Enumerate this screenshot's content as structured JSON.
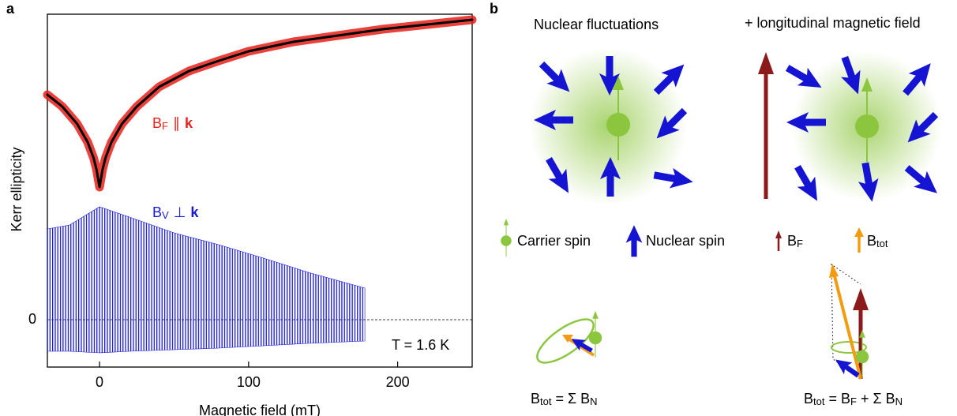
{
  "chart_data": {
    "type": "line",
    "panel_label": "a",
    "xlabel": "Magnetic field (mT)",
    "ylabel": "Kerr ellipticity",
    "xlim": [
      -35,
      250
    ],
    "ylim": [
      -0.6,
      3.87
    ],
    "xticks": [
      0,
      100,
      200
    ],
    "yticks": [
      0
    ],
    "zero_line": "dashed",
    "x": [
      -35,
      -25,
      -15,
      -8,
      -4,
      -2,
      0,
      2,
      4,
      8,
      15,
      25,
      40,
      60,
      80,
      100,
      130,
      160,
      190,
      220,
      250
    ],
    "series": [
      {
        "color": "#e8201b",
        "values": [
          2.85,
          2.7,
          2.48,
          2.25,
          2.05,
          1.9,
          1.68,
          1.9,
          2.05,
          2.25,
          2.48,
          2.7,
          2.95,
          3.15,
          3.28,
          3.4,
          3.52,
          3.6,
          3.68,
          3.74,
          3.8
        ]
      },
      {
        "color": "#000000",
        "values": [
          2.85,
          2.7,
          2.48,
          2.25,
          2.05,
          1.9,
          1.68,
          1.9,
          2.05,
          2.25,
          2.48,
          2.7,
          2.95,
          3.15,
          3.28,
          3.4,
          3.52,
          3.6,
          3.68,
          3.74,
          3.8
        ]
      },
      {
        "color": "#1a1ad6",
        "x": [
          -35,
          -20,
          0,
          20,
          50,
          80,
          110,
          140,
          178
        ],
        "values": [
          1.15,
          1.2,
          1.43,
          1.3,
          1.1,
          0.95,
          0.78,
          0.6,
          0.4
        ],
        "lower": [
          -0.4,
          -0.4,
          -0.42,
          -0.4,
          -0.38,
          -0.36,
          -0.33,
          -0.3,
          -0.27
        ]
      }
    ],
    "annotations": [
      {
        "base": "B",
        "sub": "F",
        "relation": "∥",
        "vector": "k",
        "color": "#e8201b"
      },
      {
        "base": "B",
        "sub": "V",
        "relation": "⊥",
        "vector": "k",
        "color": "#1a1ad6"
      },
      {
        "text": "T = 1.6 K",
        "color": "#000000"
      }
    ]
  },
  "panel_b": {
    "label": "b",
    "left_title": "Nuclear fluctuations",
    "right_title": "+ longitudinal magnetic field",
    "legend": {
      "carrier": "Carrier spin",
      "nuclear": "Nuclear spin",
      "bf": [
        "B",
        "F"
      ],
      "btot": [
        "B",
        "tot"
      ]
    },
    "formula_left": [
      "B",
      "tot",
      " = Σ B",
      "N"
    ],
    "formula_right": [
      "B",
      "tot",
      " = B",
      "F",
      " + Σ B",
      "N"
    ]
  }
}
